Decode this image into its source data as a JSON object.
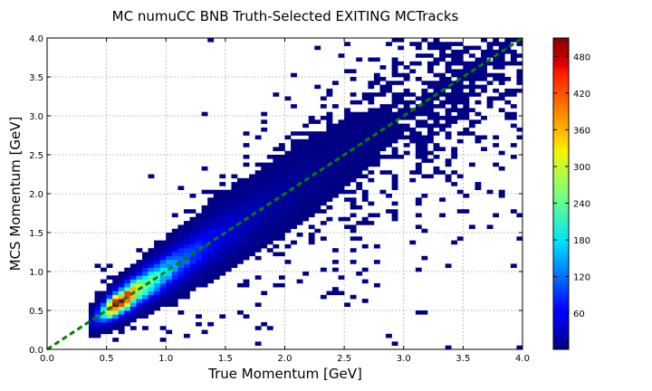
{
  "chart_data": {
    "type": "heatmap",
    "title": "MC numuCC BNB Truth-Selected EXITING MCTracks",
    "xlabel": "True Momentum [GeV]",
    "ylabel": "MCS Momentum [GeV]",
    "xlim": [
      0.0,
      4.0
    ],
    "ylim": [
      0.0,
      4.0
    ],
    "x_ticks": [
      "0.0",
      "0.5",
      "1.0",
      "1.5",
      "2.0",
      "2.5",
      "3.0",
      "3.5",
      "4.0"
    ],
    "y_ticks": [
      "0.0",
      "0.5",
      "1.0",
      "1.5",
      "2.0",
      "2.5",
      "3.0",
      "3.5",
      "4.0"
    ],
    "grid": true,
    "colormap": "jet",
    "colorbar": {
      "min": 1,
      "max": 510,
      "ticks": [
        "60",
        "120",
        "180",
        "240",
        "300",
        "360",
        "420",
        "480"
      ]
    },
    "density_model": {
      "description": "2D histogram of counts concentrated along the diagonal",
      "bins": [
        80,
        80
      ],
      "peak_count": 500,
      "peak_at_true_momentum": 0.6,
      "populated_true_momentum_min": 0.35,
      "ridge": "MCS momentum ≈ true momentum",
      "relative_spread": 0.1
    },
    "reference_line": {
      "style": "dashed",
      "color": "#008000",
      "points": [
        [
          0.0,
          0.0
        ],
        [
          4.0,
          4.0
        ]
      ]
    }
  }
}
